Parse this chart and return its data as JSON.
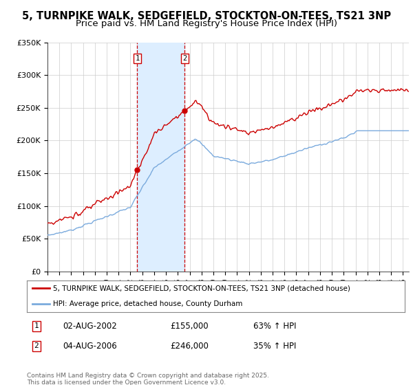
{
  "title": "5, TURNPIKE WALK, SEDGEFIELD, STOCKTON-ON-TEES, TS21 3NP",
  "subtitle": "Price paid vs. HM Land Registry's House Price Index (HPI)",
  "red_label": "5, TURNPIKE WALK, SEDGEFIELD, STOCKTON-ON-TEES, TS21 3NP (detached house)",
  "blue_label": "HPI: Average price, detached house, County Durham",
  "sale1_date": "02-AUG-2002",
  "sale1_price": 155000,
  "sale1_hpi_pct": "63% ↑ HPI",
  "sale2_date": "04-AUG-2006",
  "sale2_price": 246000,
  "sale2_hpi_pct": "35% ↑ HPI",
  "footnote": "Contains HM Land Registry data © Crown copyright and database right 2025.\nThis data is licensed under the Open Government Licence v3.0.",
  "ylim": [
    0,
    350000
  ],
  "yticks": [
    0,
    50000,
    100000,
    150000,
    200000,
    250000,
    300000,
    350000
  ],
  "ytick_labels": [
    "£0",
    "£50K",
    "£100K",
    "£150K",
    "£200K",
    "£250K",
    "£300K",
    "£350K"
  ],
  "xlim_start": 1995.0,
  "xlim_end": 2025.5,
  "red_color": "#cc0000",
  "blue_color": "#7aaadd",
  "shade_color": "#ddeeff",
  "marker_color": "#cc0000",
  "sale1_x": 2002.58,
  "sale1_y": 155000,
  "sale2_x": 2006.58,
  "sale2_y": 246000,
  "background_color": "#ffffff",
  "grid_color": "#cccccc",
  "title_fontsize": 10.5,
  "subtitle_fontsize": 9.5
}
